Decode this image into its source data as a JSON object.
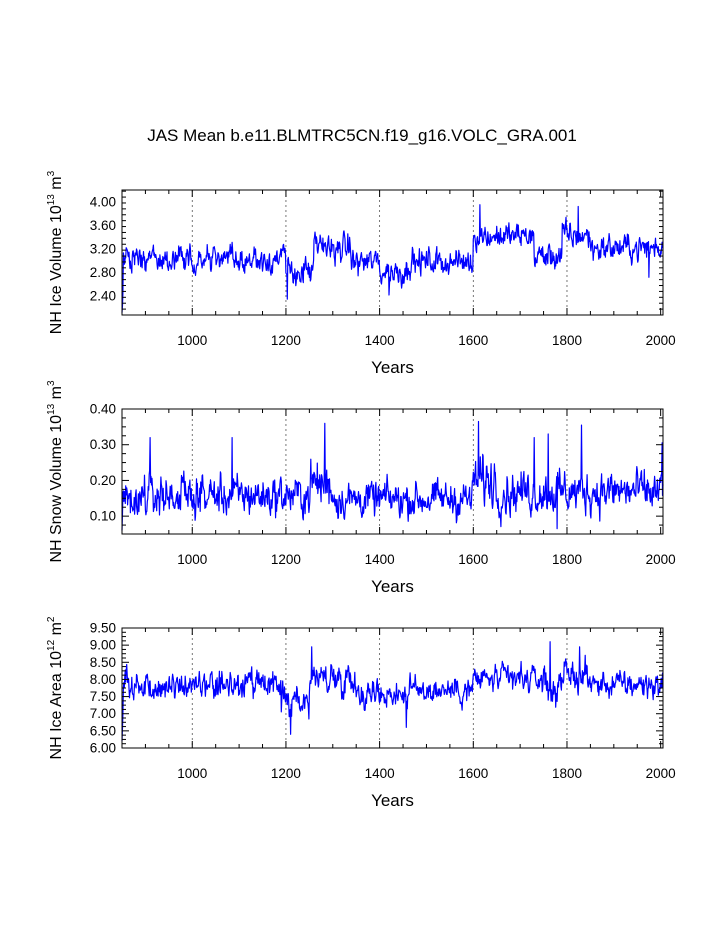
{
  "colors": {
    "series": "#0000ff",
    "axis": "#000000",
    "grid": "#555555"
  },
  "chart_data": [
    {
      "type": "line",
      "title": "JAS Mean b.e11.BLMTRC5CN.f19_g16.VOLC_GRA.001",
      "xlabel": "Years",
      "ylabel": {
        "main": "NH Ice Volume 10",
        "exp": "13",
        "unit": " m",
        "unitexp": "3"
      },
      "xlim": [
        850,
        2005
      ],
      "ylim": [
        2.08,
        4.2
      ],
      "xticks": [
        1000,
        1200,
        1400,
        1600,
        1800,
        2000
      ],
      "xtick_labels": [
        "1000",
        "1200",
        "1400",
        "1600",
        "1800",
        "2000"
      ],
      "yticks": [
        2.4,
        2.8,
        3.2,
        3.6,
        4.0
      ],
      "ytick_labels": [
        "2.40",
        "2.80",
        "3.20",
        "3.60",
        "4.00"
      ],
      "grid_x": [
        1000,
        1200,
        1400,
        1600,
        1800
      ],
      "series": [
        {
          "name": "NH Ice Volume",
          "segments": [
            [
              850,
              1200,
              3.03,
              0.17
            ],
            [
              1200,
              1260,
              2.82,
              0.18
            ],
            [
              1260,
              1340,
              3.22,
              0.18
            ],
            [
              1340,
              1400,
              2.98,
              0.17
            ],
            [
              1400,
              1460,
              2.82,
              0.18
            ],
            [
              1460,
              1600,
              2.98,
              0.17
            ],
            [
              1600,
              1730,
              3.42,
              0.16
            ],
            [
              1730,
              1790,
              3.08,
              0.18
            ],
            [
              1790,
              1850,
              3.42,
              0.18
            ],
            [
              1850,
              2005,
              3.22,
              0.17
            ]
          ],
          "extremes": [
            [
              850,
              2.12
            ],
            [
              851,
              2.25
            ],
            [
              852,
              2.45
            ],
            [
              1203,
              2.35
            ],
            [
              1420,
              2.42
            ],
            [
              1614,
              3.95
            ],
            [
              1824,
              3.92
            ],
            [
              1975,
              2.72
            ]
          ]
        }
      ]
    },
    {
      "type": "line",
      "title": "",
      "xlabel": "Years",
      "ylabel": {
        "main": "NH Snow Volume 10",
        "exp": "13",
        "unit": " m",
        "unitexp": "3"
      },
      "xlim": [
        850,
        2005
      ],
      "ylim": [
        0.05,
        0.4
      ],
      "xticks": [
        1000,
        1200,
        1400,
        1600,
        1800,
        2000
      ],
      "xtick_labels": [
        "1000",
        "1200",
        "1400",
        "1600",
        "1800",
        "2000"
      ],
      "yticks": [
        0.1,
        0.2,
        0.3,
        0.4
      ],
      "ytick_labels": [
        "0.10",
        "0.20",
        "0.30",
        "0.40"
      ],
      "grid_x": [
        1000,
        1200,
        1400,
        1600,
        1800
      ],
      "series": [
        {
          "name": "NH Snow Volume",
          "segments": [
            [
              850,
              1250,
              0.158,
              0.042
            ],
            [
              1250,
              1300,
              0.19,
              0.055
            ],
            [
              1300,
              1600,
              0.148,
              0.038
            ],
            [
              1600,
              1650,
              0.2,
              0.055
            ],
            [
              1650,
              2005,
              0.168,
              0.045
            ]
          ],
          "extremes": [
            [
              850,
              0.06
            ],
            [
              851,
              0.11
            ],
            [
              910,
              0.32
            ],
            [
              1085,
              0.32
            ],
            [
              1283,
              0.36
            ],
            [
              1611,
              0.365
            ],
            [
              1730,
              0.32
            ],
            [
              1760,
              0.33
            ],
            [
              1779,
              0.065
            ],
            [
              1831,
              0.355
            ],
            [
              2003,
              0.305
            ]
          ]
        }
      ]
    },
    {
      "type": "line",
      "title": "",
      "xlabel": "Years",
      "ylabel": {
        "main": "NH Ice Area 10",
        "exp": "12",
        "unit": " m",
        "unitexp": "2"
      },
      "xlim": [
        850,
        2005
      ],
      "ylim": [
        6.0,
        9.5
      ],
      "xticks": [
        1000,
        1200,
        1400,
        1600,
        1800,
        2000
      ],
      "xtick_labels": [
        "1000",
        "1200",
        "1400",
        "1600",
        "1800",
        "2000"
      ],
      "yticks": [
        6.0,
        6.5,
        7.0,
        7.5,
        8.0,
        8.5,
        9.0,
        9.5
      ],
      "ytick_labels": [
        "6.00",
        "6.50",
        "7.00",
        "7.50",
        "8.00",
        "8.50",
        "9.00",
        "9.50"
      ],
      "grid_x": [
        1000,
        1200,
        1400,
        1600,
        1800
      ],
      "series": [
        {
          "name": "NH Ice Area",
          "segments": [
            [
              850,
              1190,
              7.8,
              0.3
            ],
            [
              1190,
              1250,
              7.35,
              0.38
            ],
            [
              1250,
              1350,
              8.05,
              0.33
            ],
            [
              1350,
              1460,
              7.6,
              0.3
            ],
            [
              1460,
              1600,
              7.7,
              0.3
            ],
            [
              1600,
              1760,
              8.0,
              0.3
            ],
            [
              1760,
              1780,
              7.6,
              0.35
            ],
            [
              1780,
              1850,
              8.1,
              0.33
            ],
            [
              1850,
              2005,
              7.85,
              0.3
            ]
          ],
          "extremes": [
            [
              850,
              6.2
            ],
            [
              851,
              6.6
            ],
            [
              852,
              7.0
            ],
            [
              1210,
              6.4
            ],
            [
              1255,
              8.95
            ],
            [
              1457,
              6.6
            ],
            [
              1764,
              9.1
            ],
            [
              1827,
              8.95
            ]
          ]
        }
      ]
    }
  ]
}
